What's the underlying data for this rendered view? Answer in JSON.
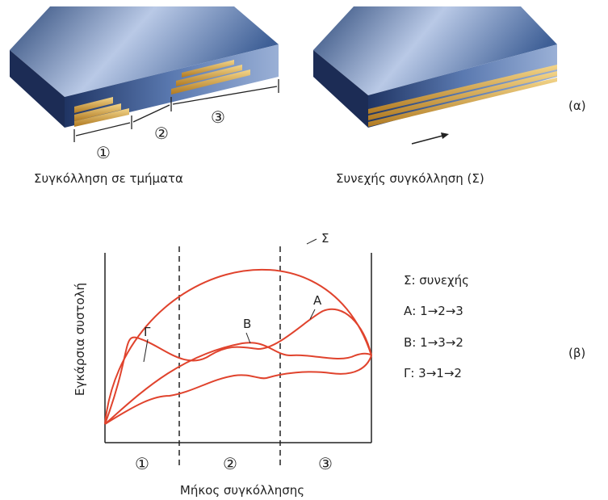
{
  "part_a": {
    "label": "(α)",
    "left": {
      "caption": "Συγκόλληση σε τμήματα",
      "segments": [
        "①",
        "②",
        "③"
      ]
    },
    "right": {
      "caption": "Συνεχής συγκόλληση (Σ)"
    }
  },
  "part_b": {
    "label": "(β)",
    "y_axis_label": "Εγκάρσια συστολή",
    "x_axis_label": "Μήκος συγκόλλησης",
    "zones": [
      "①",
      "②",
      "③"
    ],
    "curve_labels": [
      "Σ",
      "Β",
      "Α",
      "Γ"
    ],
    "legend": [
      "Σ: συνεχής",
      "Α: 1→2→3",
      "Β: 1→3→2",
      "Γ: 3→1→2"
    ]
  }
}
